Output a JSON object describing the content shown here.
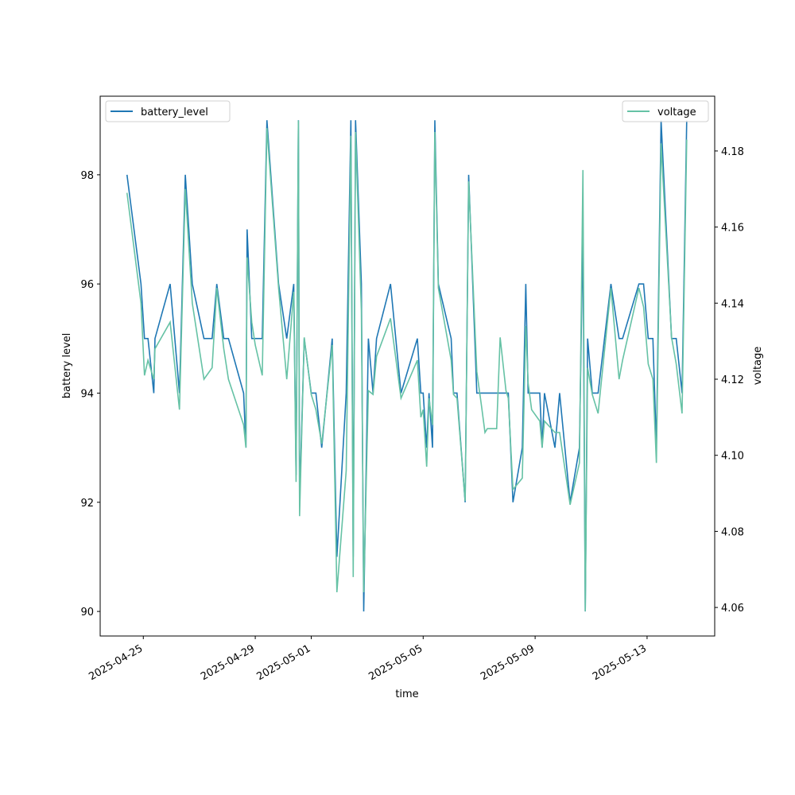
{
  "chart_data": {
    "type": "line",
    "xlabel": "time",
    "ylabel": "battery level",
    "y2label": "voltage",
    "x": [
      "2025-04-24T10:00",
      "2025-04-24T22:00",
      "2025-04-25T01:00",
      "2025-04-25T04:00",
      "2025-04-25T09:00",
      "2025-04-25T10:00",
      "2025-04-25T23:00",
      "2025-04-26T07:00",
      "2025-04-26T12:00",
      "2025-04-26T18:00",
      "2025-04-27T04:00",
      "2025-04-27T11:00",
      "2025-04-27T15:00",
      "2025-04-27T21:00",
      "2025-04-28T01:00",
      "2025-04-28T14:00",
      "2025-04-28T16:00",
      "2025-04-28T17:00",
      "2025-04-28T21:00",
      "2025-04-29T00:00",
      "2025-04-29T06:00",
      "2025-04-29T10:00",
      "2025-04-29T20:00",
      "2025-04-30T03:00",
      "2025-04-30T09:00",
      "2025-04-30T11:00",
      "2025-04-30T13:00",
      "2025-04-30T14:00",
      "2025-04-30T18:00",
      "2025-05-01T00:00",
      "2025-05-01T04:00",
      "2025-05-01T09:00",
      "2025-05-01T18:00",
      "2025-05-01T22:00",
      "2025-05-02T06:00",
      "2025-05-02T10:00",
      "2025-05-02T12:00",
      "2025-05-02T14:00",
      "2025-05-02T19:00",
      "2025-05-02T21:00",
      "2025-05-03T01:00",
      "2025-05-03T05:00",
      "2025-05-03T08:00",
      "2025-05-03T20:00",
      "2025-05-04T05:00",
      "2025-05-04T19:00",
      "2025-05-04T22:00",
      "2025-05-05T00:00",
      "2025-05-05T03:00",
      "2025-05-05T05:00",
      "2025-05-05T08:00",
      "2025-05-05T10:00",
      "2025-05-05T13:00",
      "2025-05-06T00:00",
      "2025-05-06T02:00",
      "2025-05-06T05:00",
      "2025-05-06T12:00",
      "2025-05-06T15:00",
      "2025-05-06T22:00",
      "2025-05-07T02:00",
      "2025-05-07T05:00",
      "2025-05-07T07:00",
      "2025-05-07T15:00",
      "2025-05-07T18:00",
      "2025-05-07T23:00",
      "2025-05-08T01:00",
      "2025-05-08T05:00",
      "2025-05-08T13:00",
      "2025-05-08T16:00",
      "2025-05-08T18:00",
      "2025-05-08T21:00",
      "2025-05-09T04:00",
      "2025-05-09T06:00",
      "2025-05-09T08:00",
      "2025-05-09T17:00",
      "2025-05-09T21:00",
      "2025-05-10T06:00",
      "2025-05-10T14:00",
      "2025-05-10T17:00",
      "2025-05-10T19:00",
      "2025-05-10T21:00",
      "2025-05-11T01:00",
      "2025-05-11T06:00",
      "2025-05-11T17:00",
      "2025-05-12T00:00",
      "2025-05-12T03:00",
      "2025-05-12T17:00",
      "2025-05-12T21:00",
      "2025-05-13T01:00",
      "2025-05-13T05:00",
      "2025-05-13T08:00",
      "2025-05-13T12:00",
      "2025-05-13T21:00",
      "2025-05-14T01:00",
      "2025-05-14T06:00",
      "2025-05-14T10:00"
    ],
    "series": [
      {
        "name": "battery_level",
        "color": "#1f77b4",
        "values": [
          98,
          96,
          95,
          95,
          94,
          95,
          96,
          94,
          98,
          96,
          95,
          95,
          96,
          95,
          95,
          94,
          93,
          97,
          95,
          95,
          95,
          99,
          96,
          95,
          96,
          92.5,
          99,
          92,
          95,
          94,
          94,
          93,
          95,
          91,
          94,
          99,
          91,
          99,
          96,
          90,
          95,
          94,
          95,
          96,
          94,
          95,
          94,
          94,
          93,
          94,
          93,
          99,
          96,
          95,
          94,
          94,
          92,
          98,
          94,
          94,
          94,
          94,
          94,
          94,
          94,
          94,
          92,
          93,
          96,
          94,
          94,
          94,
          93,
          94,
          93,
          94,
          92,
          93,
          97,
          90,
          95,
          94,
          94,
          96,
          95,
          95,
          96,
          96,
          95,
          95,
          93,
          99,
          95,
          95,
          94,
          99
        ]
      },
      {
        "name": "voltage",
        "color": "#66c2a5",
        "axis": "y2",
        "values": [
          4.169,
          4.14,
          4.121,
          4.125,
          4.12,
          4.128,
          4.135,
          4.112,
          4.17,
          4.14,
          4.12,
          4.123,
          4.144,
          4.128,
          4.12,
          4.108,
          4.102,
          4.152,
          4.135,
          4.129,
          4.121,
          4.186,
          4.144,
          4.12,
          4.143,
          4.093,
          4.188,
          4.084,
          4.131,
          4.116,
          4.112,
          4.103,
          4.129,
          4.064,
          4.096,
          4.184,
          4.068,
          4.185,
          4.138,
          4.064,
          4.117,
          4.116,
          4.126,
          4.136,
          4.115,
          4.125,
          4.11,
          4.112,
          4.097,
          4.115,
          4.108,
          4.185,
          4.144,
          4.125,
          4.116,
          4.115,
          4.088,
          4.172,
          4.122,
          4.113,
          4.106,
          4.107,
          4.107,
          4.131,
          4.117,
          4.115,
          4.091,
          4.094,
          4.134,
          4.119,
          4.112,
          4.109,
          4.102,
          4.109,
          4.106,
          4.106,
          4.087,
          4.098,
          4.175,
          4.059,
          4.123,
          4.116,
          4.111,
          4.144,
          4.12,
          4.125,
          4.144,
          4.139,
          4.124,
          4.12,
          4.098,
          4.182,
          4.131,
          4.124,
          4.111,
          4.183
        ]
      }
    ],
    "xlim": [
      "2025-04-23T11:00",
      "2025-05-15T10:00"
    ],
    "xticks": [
      "2025-04-25",
      "2025-04-29",
      "2025-05-01",
      "2025-05-05",
      "2025-05-09",
      "2025-05-13"
    ],
    "ylim": [
      89.55,
      99.44
    ],
    "yticks": [
      90,
      92,
      94,
      96,
      98
    ],
    "y2lim": [
      4.0525,
      4.1944
    ],
    "y2ticks": [
      4.06,
      4.08,
      {
        "value": 4.1,
        "label": "4.10"
      },
      4.12,
      4.14,
      4.16,
      4.18
    ],
    "legend": [
      "upper left",
      "upper right"
    ]
  }
}
